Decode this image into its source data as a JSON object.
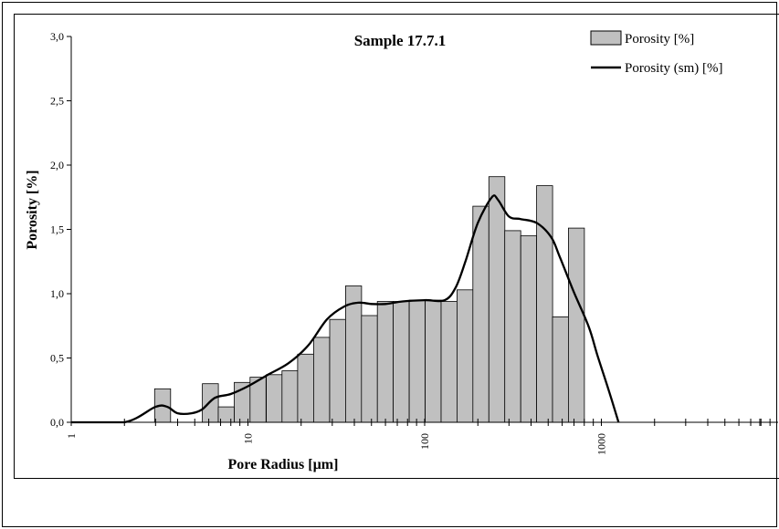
{
  "chart_data": {
    "type": "bar",
    "title": "Sample 17.7.1",
    "xlabel": "Pore Radius [µm]",
    "ylabel": "Porosity [%]",
    "x_scale": "log",
    "xlim": [
      1,
      10000
    ],
    "ylim": [
      0,
      3.0
    ],
    "y_ticks": [
      "0,0",
      "0,5",
      "1,0",
      "1,5",
      "2,0",
      "2,5",
      "3,0"
    ],
    "x_ticks": [
      "1",
      "10",
      "100",
      "1000"
    ],
    "legend_position": "top-right",
    "bar_color": "#c0c0c0",
    "line_color": "#000000",
    "series": [
      {
        "name": "Porosity [%]",
        "type": "bar",
        "x": [
          3.29,
          4.05,
          4.98,
          6.13,
          7.54,
          9.28,
          11.4,
          14.1,
          17.3,
          21.2,
          26.1,
          32.2,
          39.6,
          48.7,
          59.9,
          73.7,
          90.7,
          111.7,
          137.4,
          169,
          208,
          256,
          315,
          388,
          477,
          587,
          722,
          889
        ],
        "values": [
          0.26,
          0,
          0,
          0.3,
          0.12,
          0.31,
          0.35,
          0.37,
          0.4,
          0.53,
          0.66,
          0.8,
          1.06,
          0.83,
          0.94,
          0.94,
          0.95,
          0.95,
          0.94,
          1.03,
          1.68,
          1.91,
          1.49,
          1.45,
          1.84,
          0.82,
          1.51,
          0
        ]
      },
      {
        "name": "Porosity (sm) [%]",
        "type": "line",
        "x": [
          1.0,
          2.0,
          3.0,
          3.5,
          4.0,
          4.8,
          5.5,
          6.5,
          8.0,
          10,
          13,
          17,
          22,
          28,
          35,
          42,
          50,
          60,
          75,
          100,
          130,
          150,
          170,
          200,
          240,
          260,
          300,
          350,
          430,
          520,
          580,
          700,
          850,
          950,
          1100,
          1250
        ],
        "values": [
          0,
          0,
          0.12,
          0.12,
          0.07,
          0.07,
          0.1,
          0.19,
          0.22,
          0.28,
          0.37,
          0.46,
          0.6,
          0.8,
          0.9,
          0.93,
          0.92,
          0.92,
          0.94,
          0.95,
          0.95,
          1.05,
          1.25,
          1.55,
          1.75,
          1.73,
          1.6,
          1.58,
          1.55,
          1.44,
          1.29,
          1.01,
          0.74,
          0.52,
          0.25,
          0
        ]
      }
    ]
  }
}
